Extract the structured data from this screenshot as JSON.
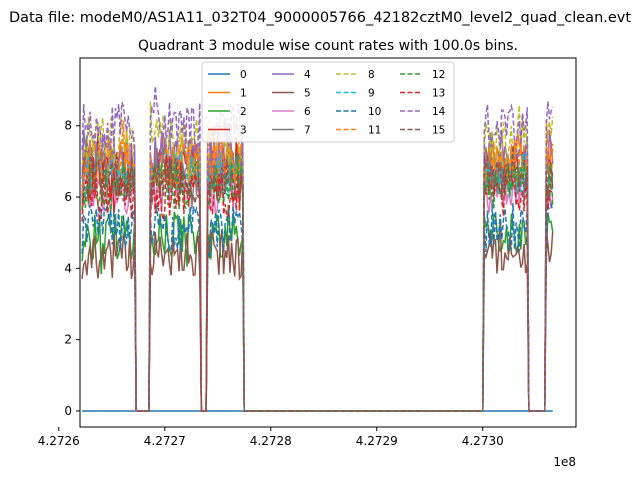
{
  "chart_data": {
    "type": "line",
    "suptitle": "Data file: modeM0/AS1A11_032T04_9000005766_42182cztM0_level2_quad_clean.evt",
    "title": "Quadrant 3 module wise count rates with 100.0s bins.",
    "xlabel": "",
    "ylabel": "",
    "x_offset_label": "1e8",
    "xlim": [
      4.27262,
      4.273088
    ],
    "ylim": [
      -0.45,
      9.9
    ],
    "x_ticks": [
      4.2726,
      4.2727,
      4.2728,
      4.2729,
      4.273
    ],
    "x_tick_labels": [
      "4.2726",
      "4.2727",
      "4.2728",
      "4.2729",
      "4.2730"
    ],
    "y_ticks": [
      0,
      2,
      4,
      6,
      8
    ],
    "y_tick_labels": [
      "0",
      "2",
      "4",
      "6",
      "8"
    ],
    "grid": false,
    "legend_placement": "upper-center",
    "legend_columns": 4,
    "gti_segments": [
      [
        4.272622,
        4.272672
      ],
      [
        4.272686,
        4.272734
      ],
      [
        4.27274,
        4.272774
      ],
      [
        4.273001,
        4.273042
      ],
      [
        4.273059,
        4.273066
      ]
    ],
    "x_range": [
      4.272622,
      4.273066
    ],
    "series": [
      {
        "name": "0",
        "color": "#1f77b4",
        "style": "solid",
        "level": 0.0
      },
      {
        "name": "1",
        "color": "#ff7f0e",
        "style": "solid",
        "level": 7.0
      },
      {
        "name": "2",
        "color": "#2ca02c",
        "style": "solid",
        "level": 4.9
      },
      {
        "name": "3",
        "color": "#d62728",
        "style": "solid",
        "level": 6.7
      },
      {
        "name": "4",
        "color": "#9467bd",
        "style": "solid",
        "level": 7.2
      },
      {
        "name": "5",
        "color": "#8c564b",
        "style": "solid",
        "level": 4.4
      },
      {
        "name": "6",
        "color": "#e377c2",
        "style": "solid",
        "level": 6.2
      },
      {
        "name": "7",
        "color": "#7f7f7f",
        "style": "solid",
        "level": 6.7
      },
      {
        "name": "8",
        "color": "#bcbd22",
        "style": "dashed",
        "level": 7.6
      },
      {
        "name": "9",
        "color": "#17becf",
        "style": "dashed",
        "level": 6.6
      },
      {
        "name": "10",
        "color": "#1f77b4",
        "style": "dashed",
        "level": 5.1
      },
      {
        "name": "11",
        "color": "#ff7f0e",
        "style": "dashed",
        "level": 6.9
      },
      {
        "name": "12",
        "color": "#2ca02c",
        "style": "dashed",
        "level": 6.3
      },
      {
        "name": "13",
        "color": "#d62728",
        "style": "dashed",
        "level": 6.0
      },
      {
        "name": "14",
        "color": "#9467bd",
        "style": "dashed",
        "level": 8.0
      },
      {
        "name": "15",
        "color": "#8c564b",
        "style": "dashed",
        "level": 6.5
      }
    ]
  }
}
